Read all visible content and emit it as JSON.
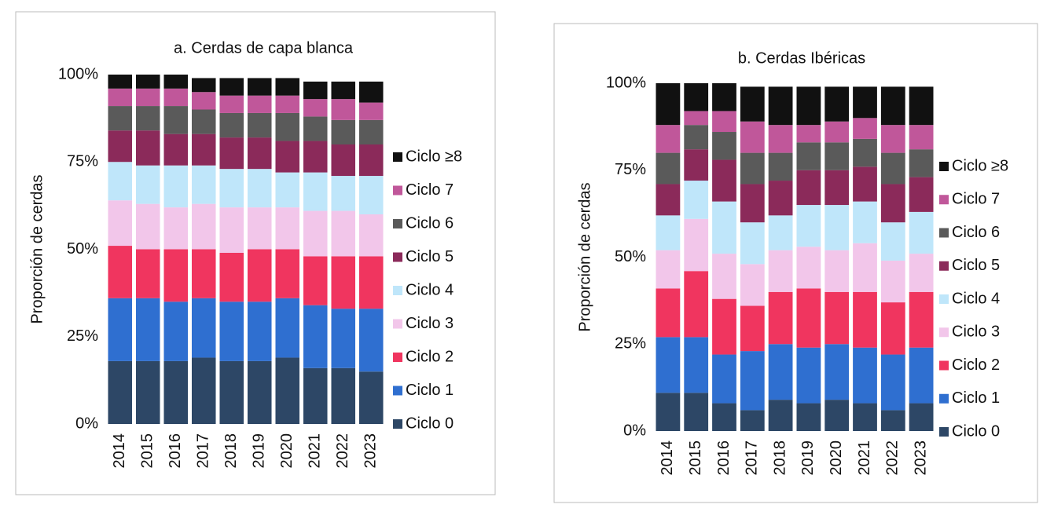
{
  "chart_data": [
    {
      "type": "stacked_bar",
      "title": "a. Cerdas de capa blanca",
      "ylabel": "Proporción de cerdas",
      "categories": [
        "2014",
        "2015",
        "2016",
        "2017",
        "2018",
        "2019",
        "2020",
        "2021",
        "2022",
        "2023"
      ],
      "ylim": [
        0,
        100
      ],
      "yticks": [
        {
          "value": 0,
          "label": "0%"
        },
        {
          "value": 25,
          "label": "25%"
        },
        {
          "value": 50,
          "label": "50%"
        },
        {
          "value": 75,
          "label": "75%"
        },
        {
          "value": 100,
          "label": "100%"
        }
      ],
      "grid": false,
      "legend": "right",
      "series": [
        {
          "name": "Ciclo 0",
          "color": "#2d4766",
          "values": [
            18,
            18,
            18,
            19,
            18,
            18,
            19,
            16,
            16,
            15
          ]
        },
        {
          "name": "Ciclo 1",
          "color": "#2f6fd0",
          "values": [
            18,
            18,
            17,
            17,
            17,
            17,
            17,
            18,
            17,
            18
          ]
        },
        {
          "name": "Ciclo 2",
          "color": "#f0355f",
          "values": [
            15,
            14,
            15,
            14,
            14,
            15,
            14,
            14,
            15,
            15
          ]
        },
        {
          "name": "Ciclo 3",
          "color": "#f2c6ea",
          "values": [
            13,
            13,
            12,
            13,
            13,
            12,
            12,
            13,
            13,
            12
          ]
        },
        {
          "name": "Ciclo 4",
          "color": "#bfe6fa",
          "values": [
            11,
            11,
            12,
            11,
            11,
            11,
            10,
            11,
            10,
            11
          ]
        },
        {
          "name": "Ciclo 5",
          "color": "#8b2a5a",
          "values": [
            9,
            10,
            9,
            9,
            9,
            9,
            9,
            9,
            9,
            9
          ]
        },
        {
          "name": "Ciclo 6",
          "color": "#5a5a5a",
          "values": [
            7,
            7,
            8,
            7,
            7,
            7,
            8,
            7,
            7,
            7
          ]
        },
        {
          "name": "Ciclo 7",
          "color": "#c0579a",
          "values": [
            5,
            5,
            5,
            5,
            5,
            5,
            5,
            5,
            6,
            5
          ]
        },
        {
          "name": "Ciclo ≥8",
          "color": "#111111",
          "values": [
            4,
            4,
            4,
            4,
            5,
            5,
            5,
            5,
            5,
            6
          ]
        }
      ]
    },
    {
      "type": "stacked_bar",
      "title": "b. Cerdas Ibéricas",
      "ylabel": "Proporción de cerdas",
      "categories": [
        "2014",
        "2015",
        "2016",
        "2017",
        "2018",
        "2019",
        "2020",
        "2021",
        "2022",
        "2023"
      ],
      "ylim": [
        0,
        100
      ],
      "yticks": [
        {
          "value": 0,
          "label": "0%"
        },
        {
          "value": 25,
          "label": "25%"
        },
        {
          "value": 50,
          "label": "50%"
        },
        {
          "value": 75,
          "label": "75%"
        },
        {
          "value": 100,
          "label": "100%"
        }
      ],
      "grid": false,
      "legend": "right",
      "series": [
        {
          "name": "Ciclo 0",
          "color": "#2d4766",
          "values": [
            11,
            11,
            8,
            6,
            9,
            8,
            9,
            8,
            6,
            8
          ]
        },
        {
          "name": "Ciclo 1",
          "color": "#2f6fd0",
          "values": [
            16,
            16,
            14,
            17,
            16,
            16,
            16,
            16,
            16,
            16
          ]
        },
        {
          "name": "Ciclo 2",
          "color": "#f0355f",
          "values": [
            14,
            19,
            16,
            13,
            15,
            17,
            15,
            16,
            15,
            16
          ]
        },
        {
          "name": "Ciclo 3",
          "color": "#f2c6ea",
          "values": [
            11,
            15,
            13,
            12,
            12,
            12,
            12,
            14,
            12,
            11
          ]
        },
        {
          "name": "Ciclo 4",
          "color": "#bfe6fa",
          "values": [
            10,
            11,
            15,
            12,
            10,
            12,
            13,
            12,
            11,
            12
          ]
        },
        {
          "name": "Ciclo 5",
          "color": "#8b2a5a",
          "values": [
            9,
            9,
            12,
            11,
            10,
            10,
            10,
            10,
            11,
            10
          ]
        },
        {
          "name": "Ciclo 6",
          "color": "#5a5a5a",
          "values": [
            9,
            7,
            8,
            9,
            8,
            8,
            8,
            8,
            9,
            8
          ]
        },
        {
          "name": "Ciclo 7",
          "color": "#c0579a",
          "values": [
            8,
            4,
            6,
            9,
            8,
            5,
            6,
            6,
            8,
            7
          ]
        },
        {
          "name": "Ciclo ≥8",
          "color": "#111111",
          "values": [
            12,
            8,
            8,
            10,
            11,
            11,
            10,
            9,
            11,
            11
          ]
        }
      ]
    }
  ]
}
